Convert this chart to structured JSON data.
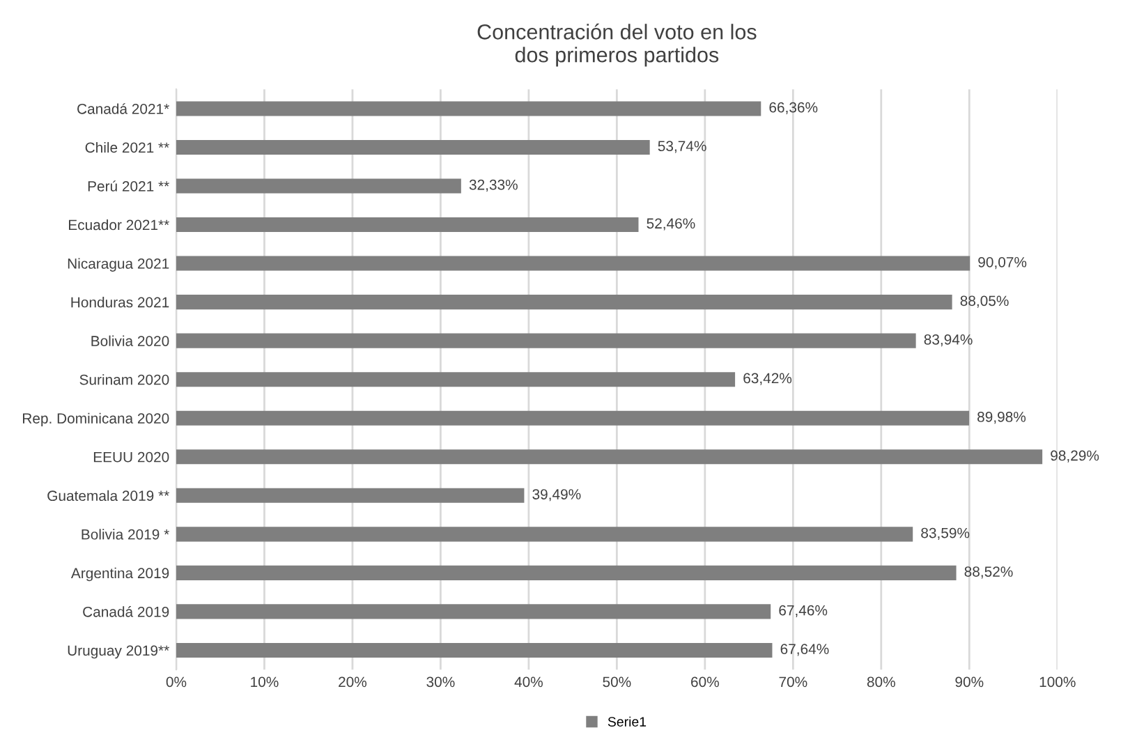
{
  "chart_data": {
    "type": "bar",
    "orientation": "horizontal",
    "title": "Concentración del voto en los\ndos primeros partidos",
    "categories": [
      "Canadá 2021*",
      "Chile 2021 **",
      "Perú 2021 **",
      "Ecuador 2021**",
      "Nicaragua 2021",
      "Honduras 2021",
      "Bolivia 2020",
      "Surinam 2020",
      "Rep. Dominicana 2020",
      "EEUU 2020",
      "Guatemala 2019 **",
      "Bolivia 2019 *",
      "Argentina 2019",
      "Canadá 2019",
      "Uruguay 2019**"
    ],
    "series": [
      {
        "name": "Serie1",
        "color": "#7f7f7f",
        "values": [
          66.36,
          53.74,
          32.33,
          52.46,
          90.07,
          88.05,
          83.94,
          63.42,
          89.98,
          98.29,
          39.49,
          83.59,
          88.52,
          67.46,
          67.64
        ],
        "value_labels": [
          "66,36%",
          "53,74%",
          "32,33%",
          "52,46%",
          "90,07%",
          "88,05%",
          "83,94%",
          "63,42%",
          "89,98%",
          "98,29%",
          "39,49%",
          "83,59%",
          "88,52%",
          "67,46%",
          "67,64%"
        ]
      }
    ],
    "xlim": [
      0,
      100
    ],
    "xticks": [
      {
        "value": 0,
        "label": "0%"
      },
      {
        "value": 10,
        "label": "10%"
      },
      {
        "value": 20,
        "label": "20%"
      },
      {
        "value": 30,
        "label": "30%"
      },
      {
        "value": 40,
        "label": "40%"
      },
      {
        "value": 50,
        "label": "50%"
      },
      {
        "value": 60,
        "label": "60%"
      },
      {
        "value": 70,
        "label": "70%"
      },
      {
        "value": 80,
        "label": "80%"
      },
      {
        "value": 90,
        "label": "90%"
      },
      {
        "value": 100,
        "label": "100%"
      }
    ],
    "grid": "x",
    "legend": "bottom"
  }
}
